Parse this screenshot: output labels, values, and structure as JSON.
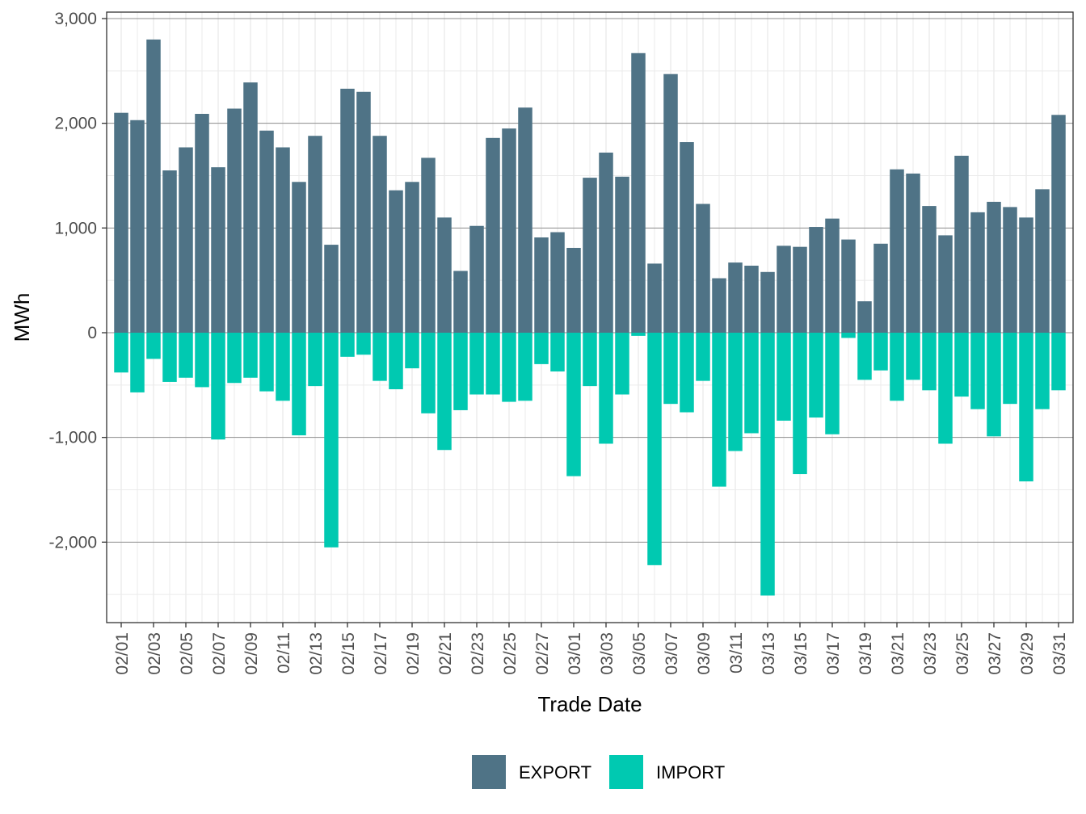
{
  "colors": {
    "export": "#4f7386",
    "import": "#00c9b1"
  },
  "chart_data": {
    "type": "bar",
    "stacked_diverging": true,
    "title": "",
    "xlabel": "Trade Date",
    "ylabel": "MWh",
    "ylim": [
      -2600,
      3000
    ],
    "y_ticks": [
      -2000,
      -1000,
      0,
      1000,
      2000,
      3000
    ],
    "y_tick_labels": [
      "-2,000",
      "-1,000",
      "0",
      "1,000",
      "2,000",
      "3,000"
    ],
    "grid": true,
    "legend_position": "bottom",
    "categories": [
      "02/01",
      "02/02",
      "02/03",
      "02/04",
      "02/05",
      "02/06",
      "02/07",
      "02/08",
      "02/09",
      "02/10",
      "02/11",
      "02/12",
      "02/13",
      "02/14",
      "02/15",
      "02/16",
      "02/17",
      "02/18",
      "02/19",
      "02/20",
      "02/21",
      "02/22",
      "02/23",
      "02/24",
      "02/25",
      "02/26",
      "02/27",
      "02/28",
      "03/01",
      "03/02",
      "03/03",
      "03/04",
      "03/05",
      "03/06",
      "03/07",
      "03/08",
      "03/09",
      "03/10",
      "03/11",
      "03/12",
      "03/13",
      "03/14",
      "03/15",
      "03/16",
      "03/17",
      "03/18",
      "03/19",
      "03/20",
      "03/21",
      "03/22",
      "03/23",
      "03/24",
      "03/25",
      "03/26",
      "03/27",
      "03/28",
      "03/29",
      "03/30",
      "03/31"
    ],
    "x_tick_labels": [
      "02/01",
      "02/03",
      "02/05",
      "02/07",
      "02/09",
      "02/11",
      "02/13",
      "02/15",
      "02/17",
      "02/19",
      "02/21",
      "02/23",
      "02/25",
      "02/27",
      "03/01",
      "03/03",
      "03/05",
      "03/07",
      "03/09",
      "03/11",
      "03/13",
      "03/15",
      "03/17",
      "03/19",
      "03/21",
      "03/23",
      "03/25",
      "03/27",
      "03/29",
      "03/31"
    ],
    "series": [
      {
        "name": "EXPORT",
        "values": [
          2100,
          2030,
          2800,
          1550,
          1770,
          2090,
          1580,
          2140,
          2390,
          1930,
          1770,
          1440,
          1880,
          840,
          2330,
          2300,
          1880,
          1360,
          1440,
          1670,
          1100,
          590,
          1020,
          1860,
          1950,
          2150,
          910,
          960,
          810,
          1480,
          1720,
          1490,
          2670,
          660,
          2470,
          1820,
          1230,
          520,
          670,
          640,
          580,
          830,
          820,
          1010,
          1090,
          890,
          300,
          850,
          1560,
          1520,
          1210,
          930,
          1690,
          1150,
          1250,
          1200,
          1100,
          1370,
          2080
        ]
      },
      {
        "name": "IMPORT",
        "values": [
          -380,
          -570,
          -250,
          -470,
          -430,
          -520,
          -1020,
          -480,
          -430,
          -560,
          -650,
          -980,
          -510,
          -2050,
          -230,
          -210,
          -460,
          -540,
          -340,
          -770,
          -1120,
          -740,
          -590,
          -590,
          -660,
          -650,
          -300,
          -370,
          -1370,
          -510,
          -1060,
          -590,
          -30,
          -2220,
          -680,
          -760,
          -460,
          -1470,
          -1130,
          -960,
          -2510,
          -840,
          -1350,
          -810,
          -970,
          -50,
          -450,
          -360,
          -650,
          -450,
          -550,
          -1060,
          -610,
          -730,
          -990,
          -680,
          -1420,
          -730,
          -550
        ]
      }
    ]
  }
}
